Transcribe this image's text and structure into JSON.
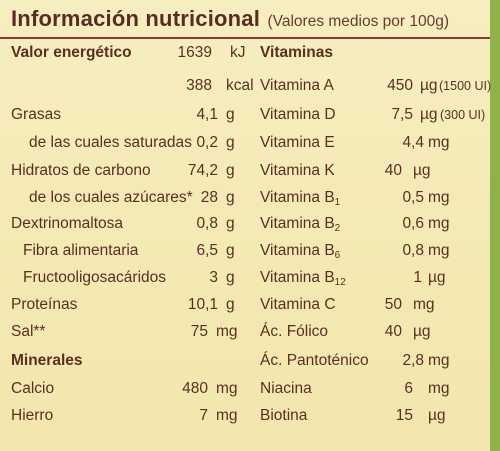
{
  "header": {
    "title": "Información nutricional",
    "subtitle": "(Valores medios por 100g)"
  },
  "left": {
    "energy_label": "Valor energético",
    "energy_kj_value": "1639",
    "energy_kj_unit": "kJ",
    "energy_kcal_value": "388",
    "energy_kcal_unit": "kcal",
    "rows": [
      {
        "label": "Grasas",
        "value": "4,1",
        "unit": "g"
      },
      {
        "label": "de las cuales saturadas",
        "value": "0,2",
        "unit": "g"
      },
      {
        "label": "Hidratos de carbono",
        "value": "74,2",
        "unit": "g"
      },
      {
        "label": "de los cuales azúcares*",
        "value": "28",
        "unit": "g"
      },
      {
        "label": "Dextrinomaltosa",
        "value": "0,8",
        "unit": "g"
      },
      {
        "label": "Fibra alimentaria",
        "value": "6,5",
        "unit": "g"
      },
      {
        "label": "Fructooligosacáridos",
        "value": "3",
        "unit": "g"
      },
      {
        "label": "Proteínas",
        "value": "10,1",
        "unit": "g"
      },
      {
        "label": "Sal**",
        "value": "75",
        "unit": "mg"
      }
    ],
    "minerals_heading": "Minerales",
    "minerals": [
      {
        "label": "Calcio",
        "value": "480",
        "unit": "mg"
      },
      {
        "label": "Hierro",
        "value": "7",
        "unit": "mg"
      }
    ]
  },
  "right": {
    "vitamins_heading": "Vitaminas",
    "vitamins": [
      {
        "label": "Vitamina A",
        "sub": "",
        "value": "450",
        "unit": "µg",
        "extra": "(1500 UI)"
      },
      {
        "label": "Vitamina D",
        "sub": "",
        "value": "7,5",
        "unit": "µg",
        "extra": "(300 UI)"
      },
      {
        "label": "Vitamina E",
        "sub": "",
        "value": "4,4",
        "unit": "mg",
        "extra": ""
      },
      {
        "label": "Vitamina K",
        "sub": "",
        "value": "40",
        "unit": "µg",
        "extra": ""
      },
      {
        "label": "Vitamina B",
        "sub": "1",
        "value": "0,5",
        "unit": "mg",
        "extra": ""
      },
      {
        "label": "Vitamina B",
        "sub": "2",
        "value": "0,6",
        "unit": "mg",
        "extra": ""
      },
      {
        "label": "Vitamina B",
        "sub": "6",
        "value": "0,8",
        "unit": "mg",
        "extra": ""
      },
      {
        "label": "Vitamina B",
        "sub": "12",
        "value": "1",
        "unit": "µg",
        "extra": ""
      },
      {
        "label": "Vitamina C",
        "sub": "",
        "value": "50",
        "unit": "mg",
        "extra": ""
      },
      {
        "label": "Ác. Fólico",
        "sub": "",
        "value": "40",
        "unit": "µg",
        "extra": ""
      },
      {
        "label": "Ác. Pantoténico",
        "sub": "",
        "value": "2,8",
        "unit": "mg",
        "extra": ""
      },
      {
        "label": "Niacina",
        "sub": "",
        "value": "6",
        "unit": "mg",
        "extra": ""
      },
      {
        "label": "Biotina",
        "sub": "",
        "value": "15",
        "unit": "µg",
        "extra": ""
      }
    ]
  }
}
